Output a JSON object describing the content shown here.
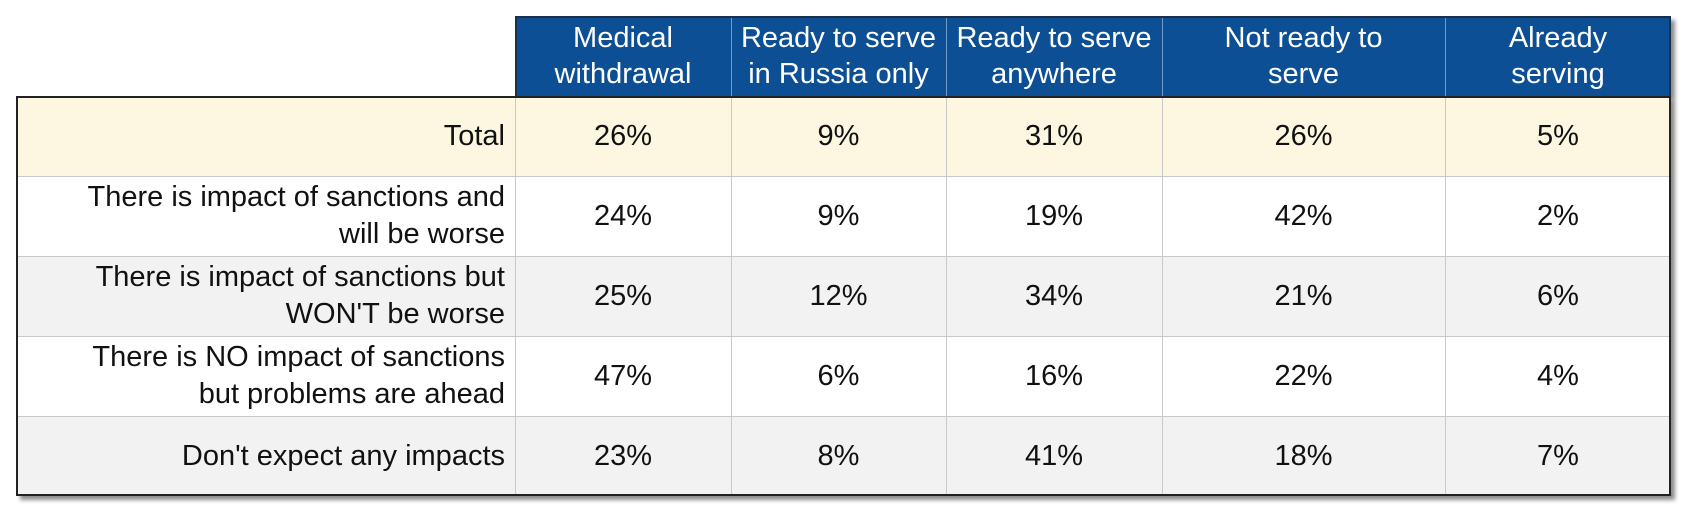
{
  "chart_data": {
    "type": "table",
    "columns": [
      "Medical\nwithdrawal",
      "Ready to serve\nin Russia only",
      "Ready to serve\nanywhere",
      "Not ready to\nserve",
      "Already\nserving"
    ],
    "rows": [
      {
        "label": "Total",
        "values": [
          26,
          9,
          31,
          26,
          5
        ],
        "display": [
          "26%",
          "9%",
          "31%",
          "26%",
          "5%"
        ]
      },
      {
        "label": "There is impact of sanctions and\nwill be worse",
        "values": [
          24,
          9,
          19,
          42,
          2
        ],
        "display": [
          "24%",
          "9%",
          "19%",
          "42%",
          "2%"
        ]
      },
      {
        "label": "There is impact of sanctions but\nWON'T be worse",
        "values": [
          25,
          12,
          34,
          21,
          6
        ],
        "display": [
          "25%",
          "12%",
          "34%",
          "21%",
          "6%"
        ]
      },
      {
        "label": "There is NO impact of sanctions\nbut problems are ahead",
        "values": [
          47,
          6,
          16,
          22,
          4
        ],
        "display": [
          "47%",
          "6%",
          "16%",
          "22%",
          "4%"
        ]
      },
      {
        "label": "Don't expect any impacts",
        "values": [
          23,
          8,
          41,
          18,
          7
        ],
        "display": [
          "23%",
          "8%",
          "41%",
          "18%",
          "7%"
        ]
      }
    ]
  },
  "colors": {
    "header_background": "#0d4f94",
    "header_text": "#ffffff",
    "total_row_background": "#fdf6e1",
    "odd_row_background": "#ffffff",
    "even_row_background": "#f2f2f2",
    "gridline": "#c9c9c9"
  }
}
